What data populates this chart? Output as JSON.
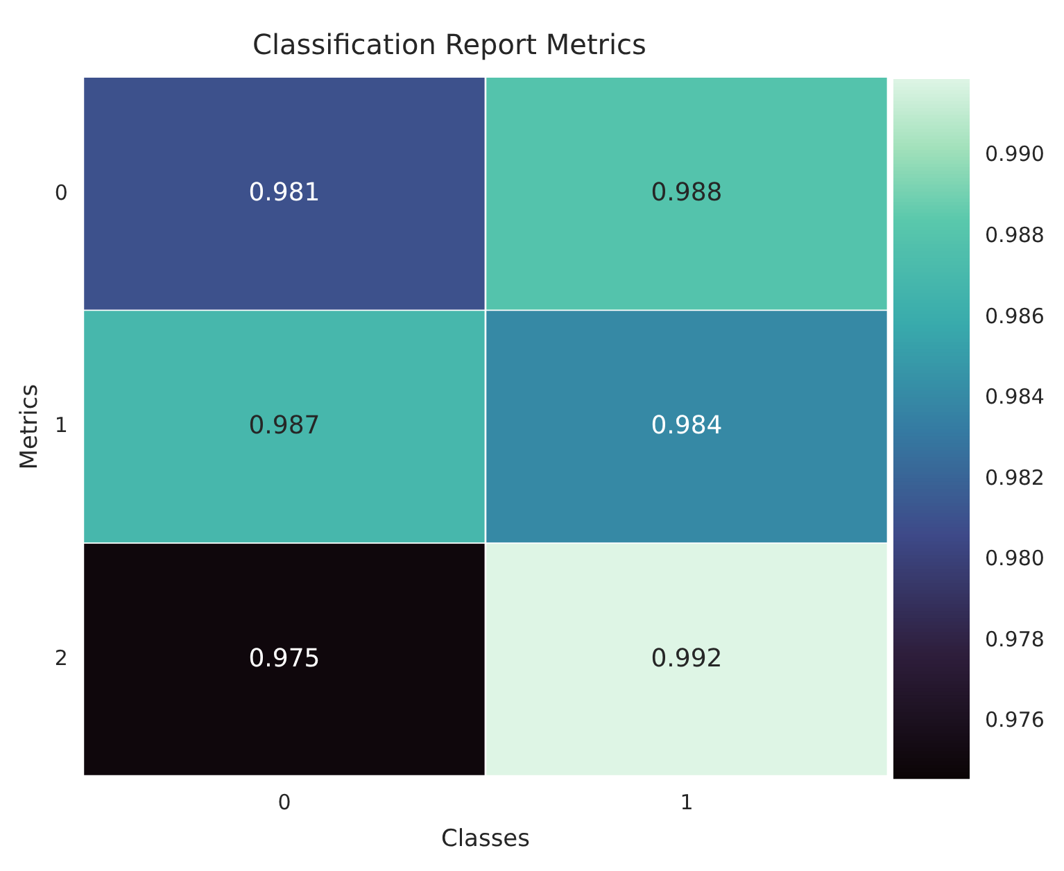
{
  "chart_data": {
    "type": "heatmap",
    "title": "Classification Report Metrics",
    "xlabel": "Classes",
    "ylabel": "Metrics",
    "categories": [
      "0",
      "1"
    ],
    "y_categories": [
      "0",
      "1",
      "2"
    ],
    "cells": [
      [
        0.981,
        0.988
      ],
      [
        0.987,
        0.984
      ],
      [
        0.975,
        0.992
      ]
    ],
    "data_labels": true,
    "clim": [
      0.9746,
      0.9919
    ],
    "cticks": [
      0.976,
      0.978,
      {
        "value": 0.98,
        "label": "0.980"
      },
      0.982,
      0.984,
      0.986,
      0.988,
      {
        "value": 0.99,
        "label": "0.990"
      }
    ]
  }
}
